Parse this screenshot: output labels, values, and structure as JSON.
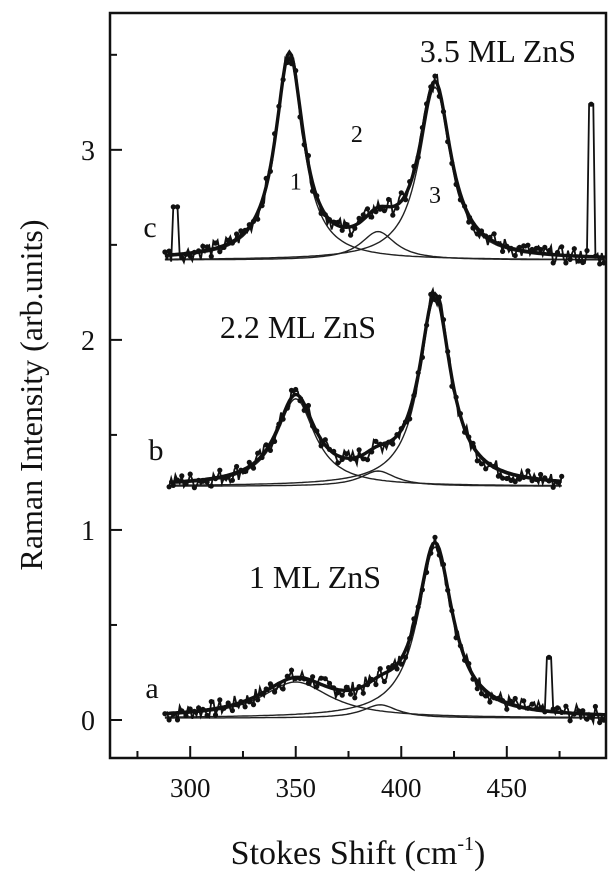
{
  "chart_data": {
    "type": "line",
    "xlabel": "Stokes Shift (cm",
    "xlabel_sup": "-1",
    "xlabel_close": ")",
    "ylabel": "Raman Intensity (arb.units)",
    "xlim": [
      262,
      497
    ],
    "ylim": [
      -0.2,
      3.72
    ],
    "x_ticks": [
      300,
      350,
      400,
      450
    ],
    "y_ticks": [
      0,
      1,
      2,
      3
    ],
    "grid": false,
    "series": [
      {
        "curve_label": "a",
        "name": "1 ML ZnS",
        "x_range": [
          288,
          497
        ],
        "baseline": 0.01,
        "peaks": [
          {
            "center": 350,
            "height": 0.19,
            "width": 20
          },
          {
            "center": 390,
            "height": 0.07,
            "width": 10
          },
          {
            "center": 416,
            "height": 0.9,
            "width": 10
          }
        ],
        "spikes": [
          {
            "x": 470,
            "height": 0.32
          }
        ]
      },
      {
        "curve_label": "b",
        "name": "2.2 ML ZnS",
        "x_range": [
          290,
          476
        ],
        "baseline": 1.23,
        "peaks": [
          {
            "center": 350,
            "height": 0.46,
            "width": 11
          },
          {
            "center": 389,
            "height": 0.08,
            "width": 10
          },
          {
            "center": 416,
            "height": 0.99,
            "width": 9
          }
        ],
        "spikes": []
      },
      {
        "curve_label": "c",
        "name": "3.5 ML ZnS",
        "x_range": [
          288,
          497
        ],
        "baseline": 2.42,
        "peaks": [
          {
            "center": 347,
            "height": 1.07,
            "width": 8
          },
          {
            "center": 389,
            "height": 0.15,
            "width": 10
          },
          {
            "center": 416,
            "height": 0.91,
            "width": 9
          }
        ],
        "spikes": [
          {
            "x": 293,
            "height": 0.28
          },
          {
            "x": 490,
            "height": 0.82
          }
        ]
      }
    ],
    "annotations": [
      {
        "text": "1",
        "x": 350,
        "y": 2.79
      },
      {
        "text": "2",
        "x": 379,
        "y": 3.04
      },
      {
        "text": "3",
        "x": 416,
        "y": 2.72
      }
    ]
  }
}
